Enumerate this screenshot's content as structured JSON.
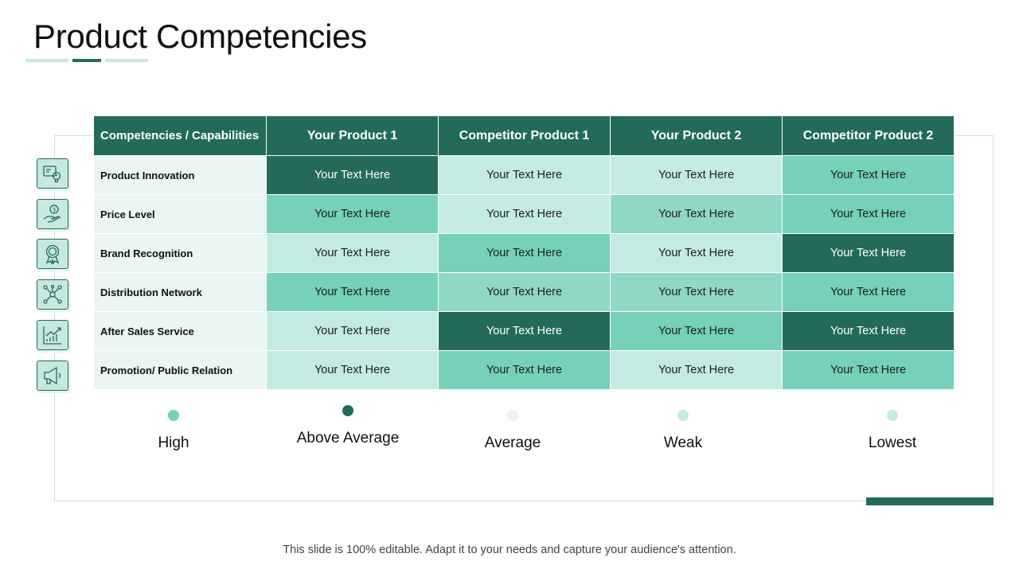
{
  "title": "Product Competencies",
  "header": {
    "first": "Competencies / Capabilities",
    "columns": [
      "Your Product 1",
      "Competitor Product 1",
      "Your Product 2",
      "Competitor Product 2"
    ]
  },
  "rows": [
    {
      "label": "Product Innovation",
      "cells": [
        "Your Text Here",
        "Your Text Here",
        "Your Text Here",
        "Your Text Here"
      ],
      "levels": [
        "above",
        "average",
        "average",
        "high"
      ],
      "icon": "innovation-icon"
    },
    {
      "label": "Price Level",
      "cells": [
        "Your Text Here",
        "Your Text Here",
        "Your Text Here",
        "Your Text Here"
      ],
      "levels": [
        "high",
        "average",
        "weak",
        "high"
      ],
      "icon": "hand-coin-icon"
    },
    {
      "label": "Brand Recognition",
      "cells": [
        "Your Text Here",
        "Your Text Here",
        "Your Text Here",
        "Your Text Here"
      ],
      "levels": [
        "average",
        "high",
        "average",
        "above"
      ],
      "icon": "award-badge-icon"
    },
    {
      "label": "Distribution  Network",
      "cells": [
        "Your Text Here",
        "Your Text Here",
        "Your Text Here",
        "Your Text Here"
      ],
      "levels": [
        "high",
        "weak",
        "weak",
        "high"
      ],
      "icon": "network-icon"
    },
    {
      "label": "After  Sales Service",
      "cells": [
        "Your Text Here",
        "Your Text Here",
        "Your Text Here",
        "Your Text Here"
      ],
      "levels": [
        "average",
        "above",
        "high",
        "above"
      ],
      "icon": "growth-chart-icon"
    },
    {
      "label": "Promotion/ Public Relation",
      "cells": [
        "Your Text Here",
        "Your Text Here",
        "Your Text Here",
        "Your Text Here"
      ],
      "levels": [
        "average",
        "high",
        "average",
        "high"
      ],
      "icon": "megaphone-icon"
    }
  ],
  "legend": [
    {
      "label": "High",
      "color": "#76d0ba"
    },
    {
      "label": "Above Average",
      "color": "#236a5a"
    },
    {
      "label": "Average",
      "color": "#e6f7f2"
    },
    {
      "label": "Weak",
      "color": "#c4ebe1"
    },
    {
      "label": "Lowest",
      "color": "#c4ebe1"
    }
  ],
  "footer": "This slide is 100% editable. Adapt it to your needs and capture your audience's attention.",
  "colors": {
    "primary": "#236a5a",
    "light": "#c6e8e0",
    "mid": "#76d0ba",
    "label_bg": "#e9f6f3"
  }
}
